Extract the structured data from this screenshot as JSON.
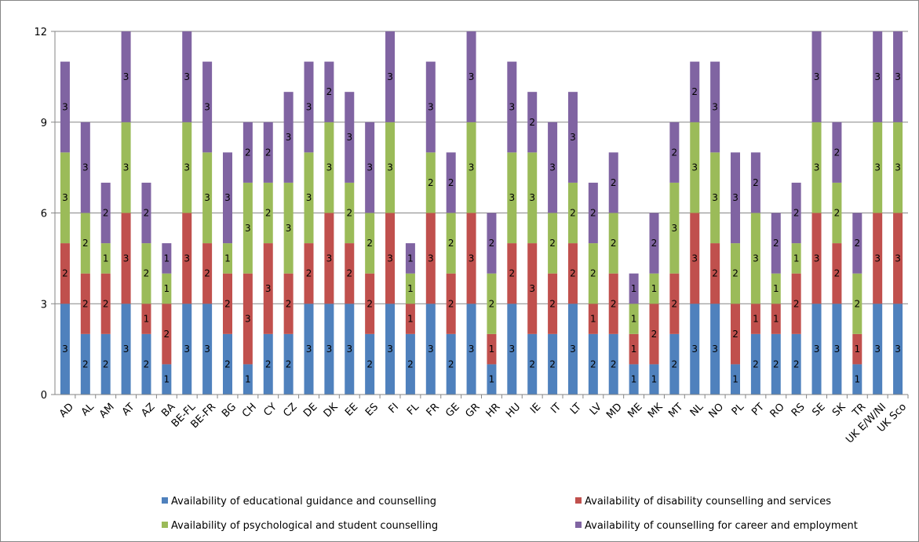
{
  "chart_data": {
    "type": "bar",
    "stacked": true,
    "title": "",
    "xlabel": "",
    "ylabel": "",
    "ylim": [
      0,
      12
    ],
    "yticks": [
      0,
      3,
      6,
      9,
      12
    ],
    "grid": true,
    "legend_position": "bottom",
    "categories": [
      "AD",
      "AL",
      "AM",
      "AT",
      "AZ",
      "BA",
      "BE-FL",
      "BE-FR",
      "BG",
      "CH",
      "CY",
      "CZ",
      "DE",
      "DK",
      "EE",
      "ES",
      "FI",
      "FL",
      "FR",
      "GE",
      "GR",
      "HR",
      "HU",
      "IE",
      "IT",
      "LT",
      "LV",
      "MD",
      "ME",
      "MK",
      "MT",
      "NL",
      "NO",
      "PL",
      "PT",
      "RO",
      "RS",
      "SE",
      "SK",
      "TR",
      "UK E/W/NI",
      "UK Sco"
    ],
    "series": [
      {
        "name": "Availability of educational guidance and counselling",
        "color": "#4f81bd",
        "values": [
          3,
          2,
          2,
          3,
          2,
          1,
          3,
          3,
          2,
          1,
          2,
          2,
          3,
          3,
          3,
          2,
          3,
          2,
          3,
          2,
          3,
          1,
          3,
          2,
          2,
          3,
          2,
          2,
          1,
          1,
          2,
          3,
          3,
          1,
          2,
          2,
          2,
          3,
          3,
          1,
          3,
          3
        ]
      },
      {
        "name": "Availability of disability counselling and services",
        "color": "#c0504d",
        "values": [
          2,
          2,
          2,
          3,
          1,
          2,
          3,
          2,
          2,
          3,
          3,
          2,
          2,
          3,
          2,
          2,
          3,
          1,
          3,
          2,
          3,
          1,
          2,
          3,
          2,
          2,
          1,
          2,
          1,
          2,
          2,
          3,
          2,
          2,
          1,
          1,
          2,
          3,
          2,
          1,
          3,
          3
        ]
      },
      {
        "name": "Availability of psychological and student counselling",
        "color": "#9bbb59",
        "values": [
          3,
          2,
          1,
          3,
          2,
          1,
          3,
          3,
          1,
          3,
          2,
          3,
          3,
          3,
          2,
          2,
          3,
          1,
          2,
          2,
          3,
          2,
          3,
          3,
          2,
          2,
          2,
          2,
          1,
          1,
          3,
          3,
          3,
          2,
          3,
          1,
          1,
          3,
          2,
          2,
          3,
          3
        ]
      },
      {
        "name": "Availability of counselling for career and employment",
        "color": "#8064a2",
        "values": [
          3,
          3,
          2,
          3,
          2,
          1,
          3,
          3,
          3,
          2,
          2,
          3,
          3,
          2,
          3,
          3,
          3,
          1,
          3,
          2,
          3,
          2,
          3,
          2,
          3,
          3,
          2,
          2,
          1,
          2,
          2,
          2,
          3,
          3,
          2,
          2,
          2,
          3,
          2,
          2,
          3,
          3
        ]
      }
    ]
  }
}
